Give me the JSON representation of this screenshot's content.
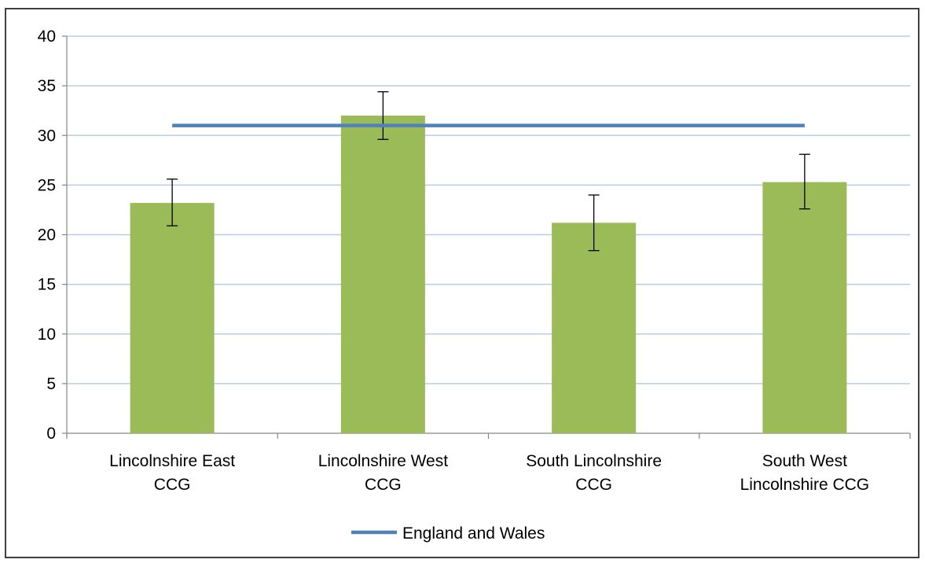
{
  "chart_data": {
    "type": "bar",
    "categories": [
      [
        "Lincolnshire East",
        "CCG"
      ],
      [
        "Lincolnshire West",
        "CCG"
      ],
      [
        "South Lincolnshire",
        "CCG"
      ],
      [
        "South West",
        "Lincolnshire CCG"
      ]
    ],
    "series": [
      {
        "values": [
          23.2,
          32.0,
          21.2,
          25.3
        ],
        "error_low": [
          20.9,
          29.6,
          18.4,
          22.6
        ],
        "error_high": [
          25.6,
          34.4,
          24.0,
          28.1
        ],
        "color": "#9BBB59"
      }
    ],
    "reference_line": {
      "name": "England and Wales",
      "value": 31.0,
      "color": "#4F81BD"
    },
    "ylim": [
      0,
      40
    ],
    "yticks": [
      0,
      5,
      10,
      15,
      20,
      25,
      30,
      35,
      40
    ],
    "grid": true,
    "gridline_color": "#B9CDE5",
    "legend_position": "bottom",
    "title": "",
    "xlabel": "",
    "ylabel": ""
  }
}
